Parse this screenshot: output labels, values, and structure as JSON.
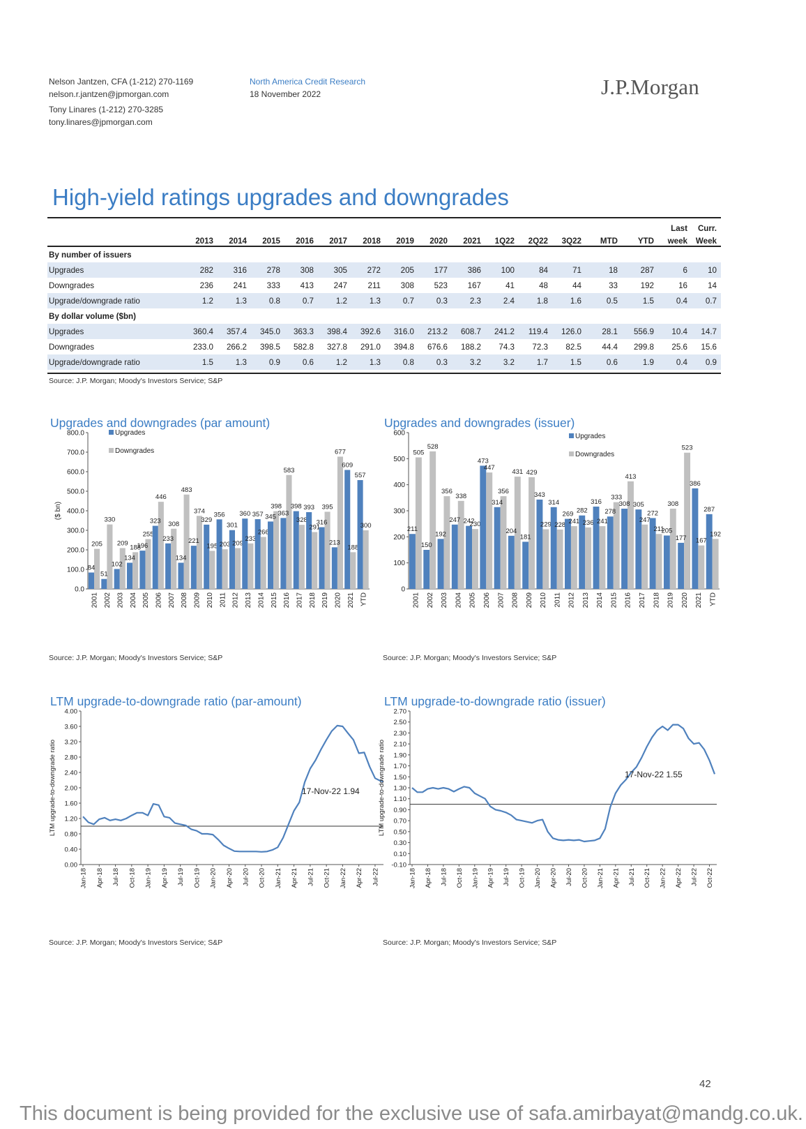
{
  "header": {
    "author1": "Nelson Jantzen, CFA (1-212) 270-1169",
    "email1": "nelson.r.jantzen@jpmorgan.com",
    "author2": "Tony Linares (1-212) 270-3285",
    "email2": "tony.linares@jpmorgan.com",
    "dept": "North America Credit Research",
    "date": "18 November 2022",
    "logo": "J.P.Morgan"
  },
  "title": "High-yield ratings upgrades and downgrades",
  "table": {
    "head_top": [
      "",
      "",
      "",
      "",
      "",
      "",
      "",
      "",
      "",
      "",
      "",
      "",
      "",
      "",
      "",
      "Last",
      "Curr."
    ],
    "head_bottom": [
      "",
      "2013",
      "2014",
      "2015",
      "2016",
      "2017",
      "2018",
      "2019",
      "2020",
      "2021",
      "1Q22",
      "2Q22",
      "3Q22",
      "MTD",
      "YTD",
      "week",
      "Week"
    ],
    "sections": [
      {
        "label": "By number of issuers",
        "rows": [
          {
            "label": "Upgrades",
            "values": [
              "282",
              "316",
              "278",
              "308",
              "305",
              "272",
              "205",
              "177",
              "386",
              "100",
              "84",
              "71",
              "18",
              "287",
              "6",
              "10"
            ]
          },
          {
            "label": "Downgrades",
            "values": [
              "236",
              "241",
              "333",
              "413",
              "247",
              "211",
              "308",
              "523",
              "167",
              "41",
              "48",
              "44",
              "33",
              "192",
              "16",
              "14"
            ]
          },
          {
            "label": "Upgrade/downgrade ratio",
            "values": [
              "1.2",
              "1.3",
              "0.8",
              "0.7",
              "1.2",
              "1.3",
              "0.7",
              "0.3",
              "2.3",
              "2.4",
              "1.8",
              "1.6",
              "0.5",
              "1.5",
              "0.4",
              "0.7"
            ]
          }
        ]
      },
      {
        "label": "By dollar volume ($bn)",
        "rows": [
          {
            "label": "Upgrades",
            "values": [
              "360.4",
              "357.4",
              "345.0",
              "363.3",
              "398.4",
              "392.6",
              "316.0",
              "213.2",
              "608.7",
              "241.2",
              "119.4",
              "126.0",
              "28.1",
              "556.9",
              "10.4",
              "14.7"
            ]
          },
          {
            "label": "Downgrades",
            "values": [
              "233.0",
              "266.2",
              "398.5",
              "582.8",
              "327.8",
              "291.0",
              "394.8",
              "676.6",
              "188.2",
              "74.3",
              "72.3",
              "82.5",
              "44.4",
              "299.8",
              "25.6",
              "15.6"
            ]
          },
          {
            "label": "Upgrade/downgrade ratio",
            "values": [
              "1.5",
              "1.3",
              "0.9",
              "0.6",
              "1.2",
              "1.3",
              "0.8",
              "0.3",
              "3.2",
              "3.2",
              "1.7",
              "1.5",
              "0.6",
              "1.9",
              "0.4",
              "0.9"
            ]
          }
        ]
      }
    ],
    "source": "Source: J.P. Morgan; Moody's Investors Service; S&P"
  },
  "chart_data": [
    {
      "type": "bar",
      "title": "Upgrades and downgrades (par amount)",
      "ylabel": "($ bn)",
      "ylim": [
        0,
        800
      ],
      "yticks": [
        "0.0",
        "100.0",
        "200.0",
        "300.0",
        "400.0",
        "500.0",
        "600.0",
        "700.0",
        "800.0"
      ],
      "legend_position": "top-left",
      "categories": [
        "2001",
        "2002",
        "2003",
        "2004",
        "2005",
        "2006",
        "2007",
        "2008",
        "2009",
        "2010",
        "2011",
        "2012",
        "2013",
        "2014",
        "2015",
        "2016",
        "2017",
        "2018",
        "2019",
        "2020",
        "2021",
        "YTD"
      ],
      "series": [
        {
          "name": "Upgrades",
          "color": "#4f81bd",
          "values": [
            84,
            51,
            102,
            134,
            196,
            323,
            233,
            134,
            221,
            329,
            356,
            301,
            360,
            357,
            345,
            363,
            398,
            393,
            316,
            213,
            609,
            557
          ]
        },
        {
          "name": "Downgrades",
          "color": "#c0c0c0",
          "values": [
            205,
            330,
            209,
            188,
            255,
            446,
            308,
            483,
            374,
            195,
            203,
            209,
            233,
            266,
            398,
            583,
            328,
            291,
            395,
            677,
            188,
            300
          ]
        }
      ],
      "source": "Source: J.P. Morgan; Moody's Investors Service; S&P"
    },
    {
      "type": "bar",
      "title": "Upgrades and downgrades (issuer)",
      "ylabel": "",
      "ylim": [
        0,
        600
      ],
      "yticks": [
        "0",
        "100",
        "200",
        "300",
        "400",
        "500",
        "600"
      ],
      "legend_position": "top-right",
      "categories": [
        "2001",
        "2002",
        "2003",
        "2004",
        "2005",
        "2006",
        "2007",
        "2008",
        "2009",
        "2010",
        "2011",
        "2012",
        "2013",
        "2014",
        "2015",
        "2016",
        "2017",
        "2018",
        "2019",
        "2020",
        "2021",
        "YTD"
      ],
      "series": [
        {
          "name": "Upgrades",
          "color": "#4f81bd",
          "values": [
            211,
            150,
            192,
            247,
            242,
            473,
            314,
            204,
            181,
            343,
            314,
            269,
            282,
            316,
            278,
            308,
            305,
            272,
            205,
            177,
            386,
            287
          ]
        },
        {
          "name": "Downgrades",
          "color": "#c0c0c0",
          "values": [
            505,
            528,
            356,
            338,
            230,
            447,
            356,
            431,
            429,
            229,
            228,
            241,
            236,
            241,
            333,
            413,
            247,
            211,
            308,
            523,
            167,
            192
          ]
        }
      ],
      "source": "Source: J.P. Morgan; Moody's Investors Service; S&P"
    },
    {
      "type": "line",
      "title": "LTM upgrade-to-downgrade ratio (par-amount)",
      "ylabel": "LTM upgrade-to-downgrade ratio",
      "ylim": [
        0,
        4
      ],
      "yticks": [
        "0.00",
        "0.40",
        "0.80",
        "1.20",
        "1.60",
        "2.00",
        "2.40",
        "2.80",
        "3.20",
        "3.60",
        "4.00"
      ],
      "xticks": [
        "Jan-18",
        "Apr-18",
        "Jul-18",
        "Oct-18",
        "Jan-19",
        "Apr-19",
        "Jul-19",
        "Oct-19",
        "Jan-20",
        "Apr-20",
        "Jul-20",
        "Oct-20",
        "Jan-21",
        "Apr-21",
        "Jul-21",
        "Oct-21",
        "Jan-22",
        "Apr-22",
        "Jul-22",
        "Oct-22"
      ],
      "x": [
        "Jan-18",
        "Feb-18",
        "Mar-18",
        "Apr-18",
        "May-18",
        "Jun-18",
        "Jul-18",
        "Aug-18",
        "Sep-18",
        "Oct-18",
        "Nov-18",
        "Dec-18",
        "Jan-19",
        "Feb-19",
        "Mar-19",
        "Apr-19",
        "May-19",
        "Jun-19",
        "Jul-19",
        "Aug-19",
        "Sep-19",
        "Oct-19",
        "Nov-19",
        "Dec-19",
        "Jan-20",
        "Feb-20",
        "Mar-20",
        "Apr-20",
        "May-20",
        "Jun-20",
        "Jul-20",
        "Aug-20",
        "Sep-20",
        "Oct-20",
        "Nov-20",
        "Dec-20",
        "Jan-21",
        "Feb-21",
        "Mar-21",
        "Apr-21",
        "May-21",
        "Jun-21",
        "Jul-21",
        "Aug-21",
        "Sep-21",
        "Oct-21",
        "Nov-21",
        "Dec-21",
        "Jan-22",
        "Feb-22",
        "Mar-22",
        "Apr-22",
        "May-22",
        "Jun-22",
        "Jul-22",
        "Aug-22",
        "Sep-22",
        "Oct-22",
        "Nov-22"
      ],
      "values": [
        1.25,
        1.1,
        1.05,
        1.18,
        1.22,
        1.15,
        1.18,
        1.15,
        1.2,
        1.28,
        1.35,
        1.35,
        1.28,
        1.58,
        1.55,
        1.25,
        1.22,
        1.08,
        1.05,
        1.02,
        0.92,
        0.88,
        0.8,
        0.8,
        0.78,
        0.65,
        0.5,
        0.42,
        0.35,
        0.34,
        0.34,
        0.34,
        0.34,
        0.33,
        0.34,
        0.38,
        0.45,
        0.7,
        1.05,
        1.4,
        1.62,
        2.15,
        2.5,
        2.72,
        3.0,
        3.25,
        3.48,
        3.62,
        3.6,
        3.42,
        3.25,
        2.9,
        2.92,
        2.55,
        2.25,
        2.18,
        2.15,
        2.05,
        1.94
      ],
      "reference_line": 1.0,
      "annotation": "17-Nov-22 1.94",
      "source": "Source: J.P. Morgan; Moody's Investors Service; S&P"
    },
    {
      "type": "line",
      "title": "LTM upgrade-to-downgrade ratio (issuer)",
      "ylabel": "LTM upgrade-to-downgrade ratio",
      "ylim": [
        -0.1,
        2.7
      ],
      "yticks": [
        "-0.10",
        "0.10",
        "0.30",
        "0.50",
        "0.70",
        "0.90",
        "1.10",
        "1.30",
        "1.50",
        "1.70",
        "1.90",
        "2.10",
        "2.30",
        "2.50",
        "2.70"
      ],
      "xticks": [
        "Jan-18",
        "Apr-18",
        "Jul-18",
        "Oct-18",
        "Jan-19",
        "Apr-19",
        "Jul-19",
        "Oct-19",
        "Jan-20",
        "Apr-20",
        "Jul-20",
        "Oct-20",
        "Jan-21",
        "Apr-21",
        "Jul-21",
        "Oct-21",
        "Jan-22",
        "Apr-22",
        "Jul-22",
        "Oct-22"
      ],
      "x": [
        "Jan-18",
        "Feb-18",
        "Mar-18",
        "Apr-18",
        "May-18",
        "Jun-18",
        "Jul-18",
        "Aug-18",
        "Sep-18",
        "Oct-18",
        "Nov-18",
        "Dec-18",
        "Jan-19",
        "Feb-19",
        "Mar-19",
        "Apr-19",
        "May-19",
        "Jun-19",
        "Jul-19",
        "Aug-19",
        "Sep-19",
        "Oct-19",
        "Nov-19",
        "Dec-19",
        "Jan-20",
        "Feb-20",
        "Mar-20",
        "Apr-20",
        "May-20",
        "Jun-20",
        "Jul-20",
        "Aug-20",
        "Sep-20",
        "Oct-20",
        "Nov-20",
        "Dec-20",
        "Jan-21",
        "Feb-21",
        "Mar-21",
        "Apr-21",
        "May-21",
        "Jun-21",
        "Jul-21",
        "Aug-21",
        "Sep-21",
        "Oct-21",
        "Nov-21",
        "Dec-21",
        "Jan-22",
        "Feb-22",
        "Mar-22",
        "Apr-22",
        "May-22",
        "Jun-22",
        "Jul-22",
        "Aug-22",
        "Sep-22",
        "Oct-22",
        "Nov-22"
      ],
      "values": [
        1.3,
        1.22,
        1.22,
        1.28,
        1.3,
        1.28,
        1.3,
        1.28,
        1.23,
        1.28,
        1.32,
        1.3,
        1.2,
        1.15,
        1.1,
        0.96,
        0.9,
        0.88,
        0.85,
        0.8,
        0.72,
        0.7,
        0.68,
        0.66,
        0.7,
        0.72,
        0.5,
        0.38,
        0.35,
        0.34,
        0.35,
        0.34,
        0.35,
        0.32,
        0.33,
        0.34,
        0.38,
        0.55,
        0.95,
        1.2,
        1.35,
        1.45,
        1.58,
        1.68,
        1.85,
        2.05,
        2.22,
        2.35,
        2.42,
        2.35,
        2.45,
        2.45,
        2.38,
        2.2,
        2.1,
        2.12,
        2.0,
        1.8,
        1.55
      ],
      "reference_line": 1.0,
      "annotation": "17-Nov-22 1.55",
      "source": "Source: J.P. Morgan; Moody's Investors Service; S&P"
    }
  ],
  "page_number": "42",
  "watermark": "This document is being provided for the exclusive use of safa.amirbayat@mandg.co.uk."
}
